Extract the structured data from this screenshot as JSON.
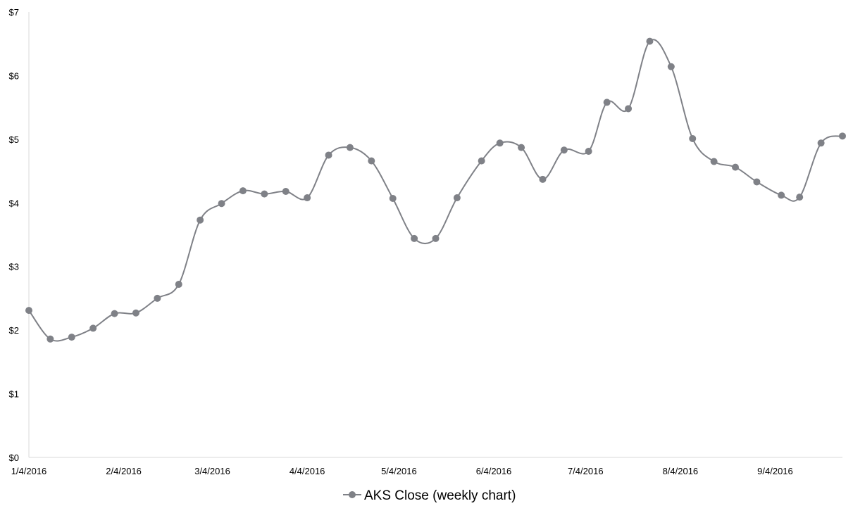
{
  "chart_data": {
    "type": "line",
    "smooth": true,
    "marker": "circle",
    "title": "",
    "xlabel": "",
    "ylabel": "",
    "ylim": [
      0,
      7
    ],
    "y_ticks": [
      "$0",
      "$1",
      "$2",
      "$3",
      "$4",
      "$5",
      "$6",
      "$7"
    ],
    "xlim": [
      "2016-01-04",
      "2016-09-26"
    ],
    "x_ticks": [
      {
        "date": "2016-01-04",
        "label": "1/4/2016"
      },
      {
        "date": "2016-02-04",
        "label": "2/4/2016"
      },
      {
        "date": "2016-03-04",
        "label": "3/4/2016"
      },
      {
        "date": "2016-04-04",
        "label": "4/4/2016"
      },
      {
        "date": "2016-05-04",
        "label": "5/4/2016"
      },
      {
        "date": "2016-06-04",
        "label": "6/4/2016"
      },
      {
        "date": "2016-07-04",
        "label": "7/4/2016"
      },
      {
        "date": "2016-08-04",
        "label": "8/4/2016"
      },
      {
        "date": "2016-09-04",
        "label": "9/4/2016"
      }
    ],
    "grid": false,
    "legend_position": "bottom",
    "series": [
      {
        "name": "AKS Close (weekly chart)",
        "color": "#7f8187",
        "points": [
          {
            "x": "2016-01-04",
            "y": 2.31
          },
          {
            "x": "2016-01-11",
            "y": 1.86
          },
          {
            "x": "2016-01-18",
            "y": 1.89
          },
          {
            "x": "2016-01-25",
            "y": 2.03
          },
          {
            "x": "2016-02-01",
            "y": 2.26
          },
          {
            "x": "2016-02-08",
            "y": 2.27
          },
          {
            "x": "2016-02-15",
            "y": 2.5
          },
          {
            "x": "2016-02-22",
            "y": 2.72
          },
          {
            "x": "2016-02-29",
            "y": 3.73
          },
          {
            "x": "2016-03-07",
            "y": 3.99
          },
          {
            "x": "2016-03-14",
            "y": 4.19
          },
          {
            "x": "2016-03-21",
            "y": 4.14
          },
          {
            "x": "2016-03-28",
            "y": 4.18
          },
          {
            "x": "2016-04-04",
            "y": 4.08
          },
          {
            "x": "2016-04-11",
            "y": 4.75
          },
          {
            "x": "2016-04-18",
            "y": 4.87
          },
          {
            "x": "2016-04-25",
            "y": 4.66
          },
          {
            "x": "2016-05-02",
            "y": 4.07
          },
          {
            "x": "2016-05-09",
            "y": 3.44
          },
          {
            "x": "2016-05-16",
            "y": 3.44
          },
          {
            "x": "2016-05-23",
            "y": 4.08
          },
          {
            "x": "2016-05-31",
            "y": 4.66
          },
          {
            "x": "2016-06-06",
            "y": 4.94
          },
          {
            "x": "2016-06-13",
            "y": 4.87
          },
          {
            "x": "2016-06-20",
            "y": 4.37
          },
          {
            "x": "2016-06-27",
            "y": 4.83
          },
          {
            "x": "2016-07-05",
            "y": 4.81
          },
          {
            "x": "2016-07-11",
            "y": 5.58
          },
          {
            "x": "2016-07-18",
            "y": 5.48
          },
          {
            "x": "2016-07-25",
            "y": 6.54
          },
          {
            "x": "2016-08-01",
            "y": 6.14
          },
          {
            "x": "2016-08-08",
            "y": 5.01
          },
          {
            "x": "2016-08-15",
            "y": 4.65
          },
          {
            "x": "2016-08-22",
            "y": 4.56
          },
          {
            "x": "2016-08-29",
            "y": 4.33
          },
          {
            "x": "2016-09-06",
            "y": 4.12
          },
          {
            "x": "2016-09-12",
            "y": 4.09
          },
          {
            "x": "2016-09-19",
            "y": 4.94
          },
          {
            "x": "2016-09-26",
            "y": 5.05
          }
        ]
      }
    ]
  }
}
